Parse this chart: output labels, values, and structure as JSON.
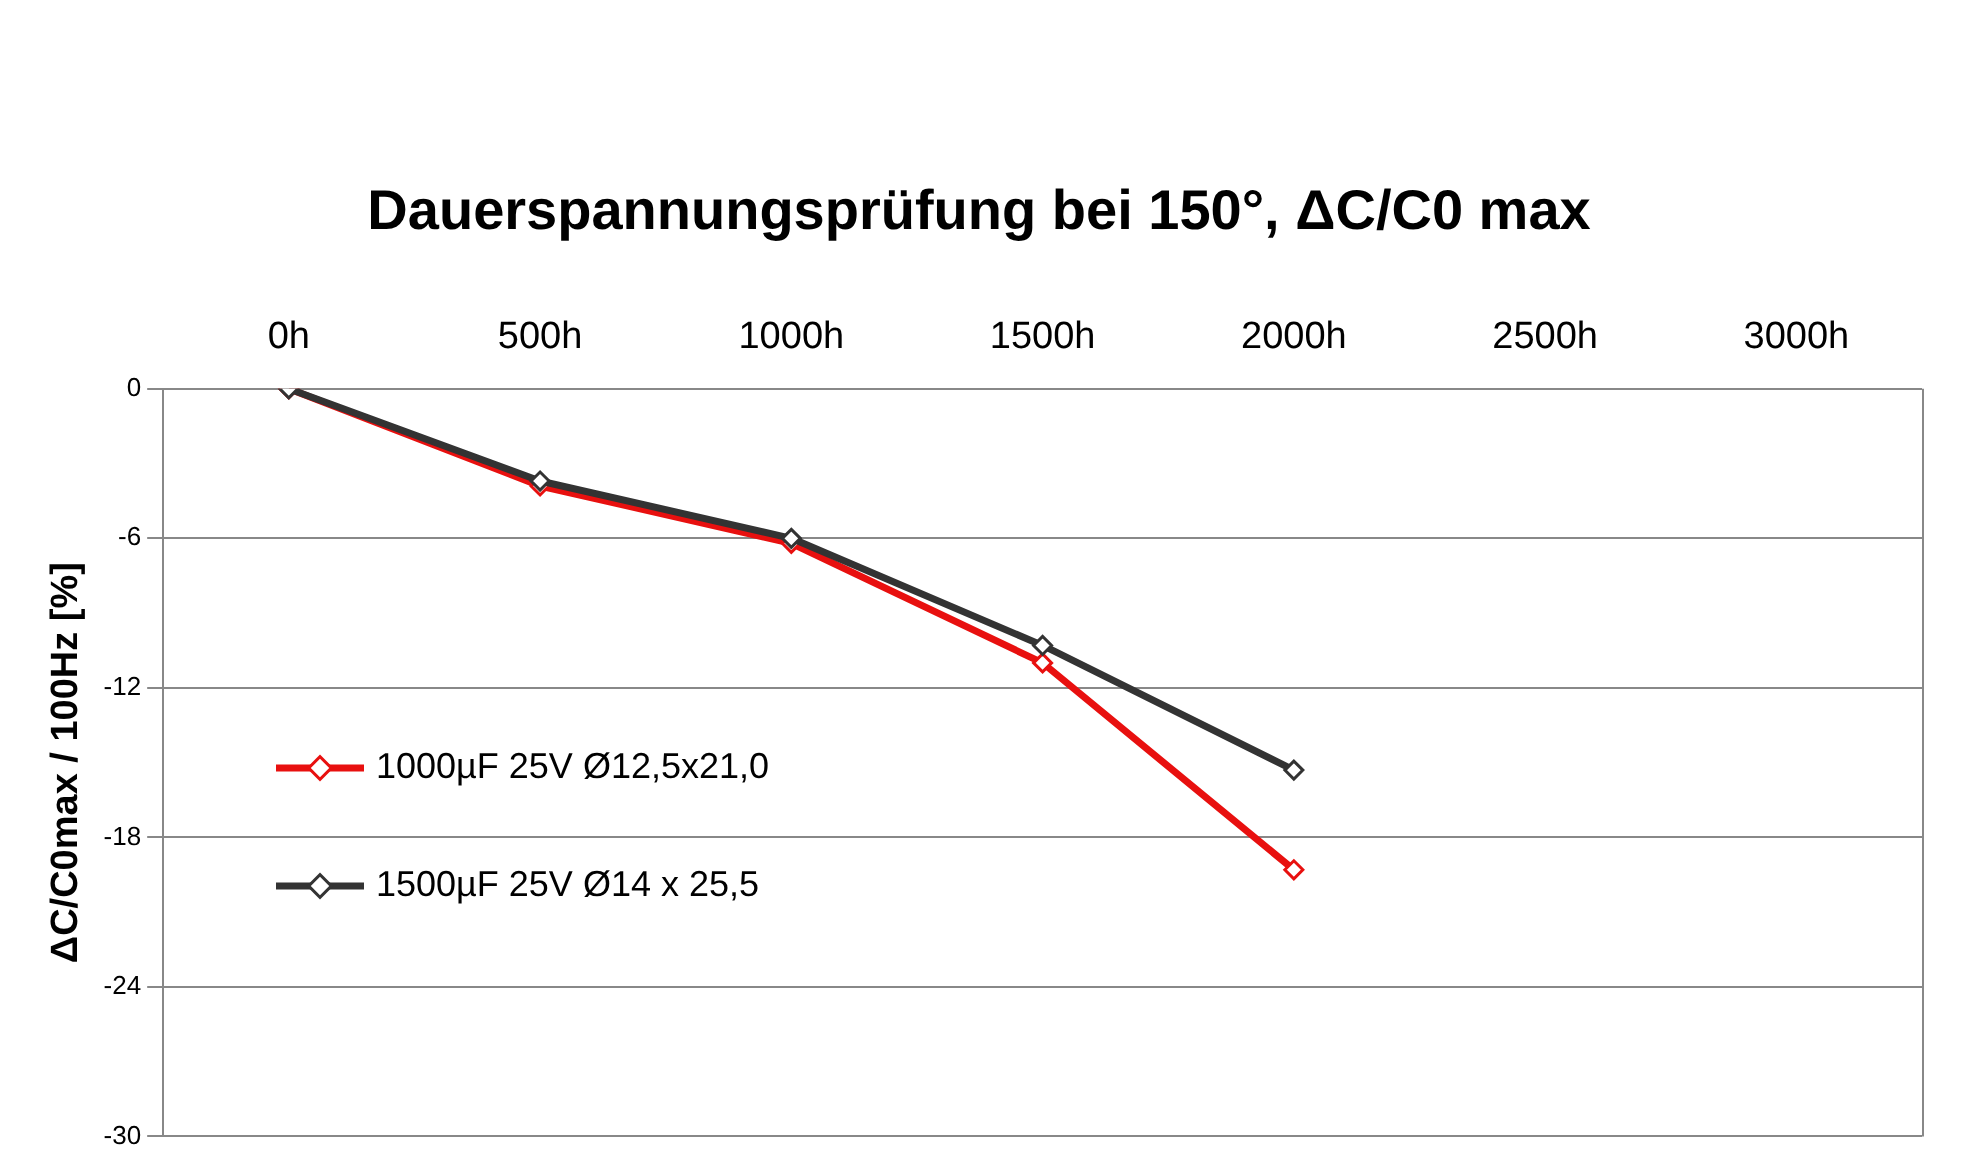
{
  "chart_data": {
    "type": "line",
    "title": "Dauerspannungsprüfung bei 150°, ΔC/C0 max",
    "ylabel": "ΔC/C0max / 100Hz [%]",
    "categories": [
      "0h",
      "500h",
      "1000h",
      "1500h",
      "2000h",
      "2500h",
      "3000h"
    ],
    "series": [
      {
        "name": "1000µF 25V Ø12,5x21,0",
        "color": "#e8100f",
        "values": [
          0,
          -3.9,
          -6.2,
          -11.0,
          -19.3,
          null,
          null
        ]
      },
      {
        "name": "1500µF 25V Ø14 x 25,5",
        "color": "#333333",
        "values": [
          0,
          -3.7,
          -6.0,
          -10.3,
          -15.3,
          null,
          null
        ]
      }
    ],
    "ylim": [
      -30,
      0
    ],
    "yticks": [
      -30,
      -24,
      -18,
      -12,
      -6,
      0
    ],
    "grid": "y",
    "legend": "left",
    "marker": "diamond",
    "line_style": "solid"
  }
}
